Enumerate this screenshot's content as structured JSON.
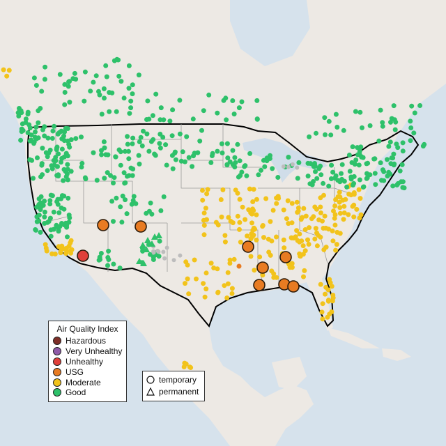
{
  "legend": {
    "title": "Air Quality Index",
    "items": [
      {
        "label": "Hazardous",
        "color": "#7e2f28"
      },
      {
        "label": "Very Unhealthy",
        "color": "#8e5aa8"
      },
      {
        "label": "Unhealthy",
        "color": "#e0403a"
      },
      {
        "label": "USG",
        "color": "#e87b22"
      },
      {
        "label": "Moderate",
        "color": "#f2c31b"
      },
      {
        "label": "Good",
        "color": "#2ec16a"
      }
    ]
  },
  "site_types": [
    {
      "label": "temporary",
      "shape": "circle"
    },
    {
      "label": "permanent",
      "shape": "triangle"
    }
  ],
  "colors": {
    "water": "#d6e2ec",
    "land": "#ede9e4",
    "lake": "#d0dde9",
    "border": "#000000",
    "state_line": "#9a9a9a",
    "no_data": "#bdbdbd"
  }
}
